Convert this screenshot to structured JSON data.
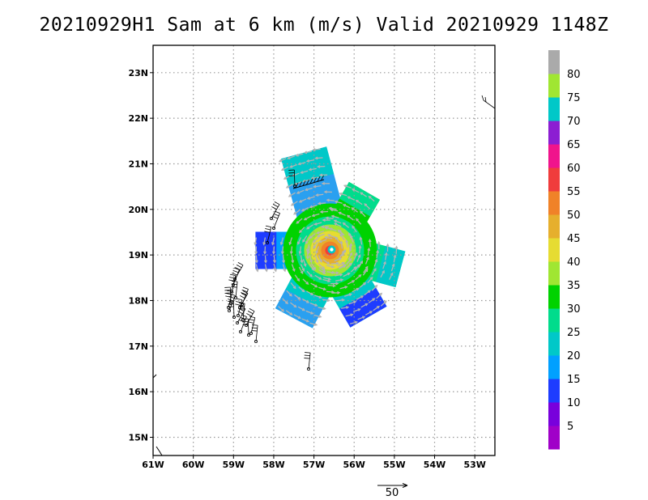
{
  "title": "20210929H1 Sam at 6 km (m/s) Valid 20210929 1148Z",
  "map": {
    "lon_labels": [
      "61W",
      "60W",
      "59W",
      "58W",
      "57W",
      "56W",
      "55W",
      "54W",
      "53W"
    ],
    "lat_labels": [
      "15N",
      "16N",
      "17N",
      "18N",
      "19N",
      "20N",
      "21N",
      "22N",
      "23N"
    ],
    "lon_range": [
      -61,
      -52.5
    ],
    "lat_range": [
      14.6,
      23.6
    ],
    "grid": "dotted",
    "storm_center": {
      "lon": -56.6,
      "lat": 19.1
    }
  },
  "colorbar": {
    "labels": [
      "5",
      "10",
      "15",
      "20",
      "25",
      "30",
      "35",
      "40",
      "45",
      "50",
      "55",
      "60",
      "65",
      "70",
      "75",
      "80"
    ],
    "colors": [
      "#a000c8",
      "#7800dc",
      "#1e3cff",
      "#00a0ff",
      "#00c8c8",
      "#00dc8c",
      "#00d200",
      "#a0e632",
      "#e6dc32",
      "#e6af2d",
      "#f08228",
      "#f03c3c",
      "#f0148c",
      "#8c1ed2",
      "#00c8c8",
      "#a0e632",
      "#aaaaaa"
    ]
  },
  "reference_vector": {
    "label": "50"
  }
}
